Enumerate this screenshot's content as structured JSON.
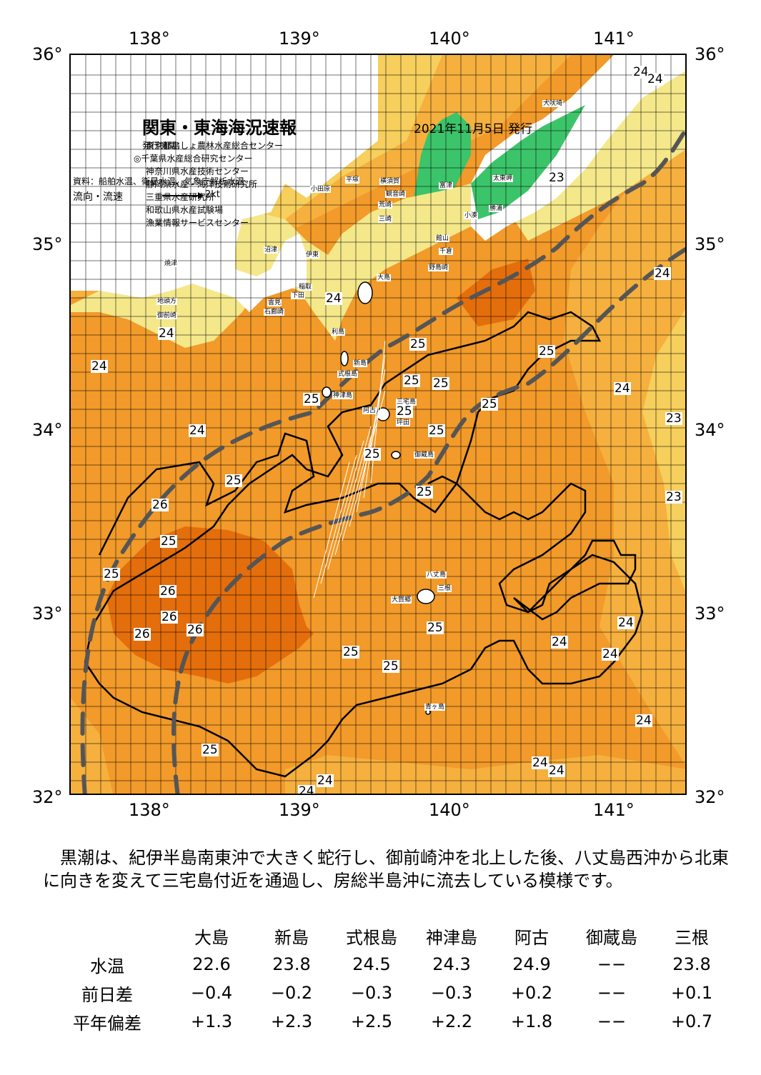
{
  "map": {
    "title": "関東・東海海況速報",
    "issue_date": "2021年11月5日 発行",
    "agency_heading": "発行機関：",
    "agencies": [
      "東京都島しょ農林水産総合センター",
      "◎千葉県水産総合研究センター",
      "神奈川県水産技術センター",
      "静岡県水産・海洋技術研究所",
      "三重県水産研究所",
      "和歌山県水産試験場",
      "漁業情報サービスセンター"
    ],
    "sources": "資料：船舶水温、衛星水温、気象庁解析水温",
    "flow_label": "流向・流速",
    "flow_scale": "2kt",
    "lon_labels": [
      "138°",
      "139°",
      "140°",
      "141°"
    ],
    "lat_labels": [
      "36°",
      "35°",
      "34°",
      "33°",
      "32°"
    ],
    "isotherm_labels": [
      "24",
      "24",
      "23",
      "24",
      "24",
      "24",
      "24",
      "25",
      "25",
      "25",
      "25",
      "25",
      "24",
      "25",
      "23",
      "25",
      "25",
      "24",
      "23",
      "25",
      "25",
      "25",
      "26",
      "23",
      "25",
      "26",
      "26",
      "26",
      "26",
      "25",
      "25",
      "24",
      "24",
      "25",
      "24",
      "25",
      "24",
      "24",
      "25",
      "24",
      "24",
      "24"
    ],
    "place_names": [
      "犬吠埼",
      "太東岬",
      "勝浦",
      "小湊",
      "富津",
      "横須賀",
      "観音崎",
      "平塚",
      "小田原",
      "荒崎",
      "三崎",
      "館山",
      "千倉",
      "野島崎",
      "沼津",
      "伊東",
      "稲取",
      "下田",
      "石廊崎",
      "雲見",
      "焼津",
      "地頭方",
      "御前崎",
      "大島",
      "利島",
      "新島",
      "式根島",
      "神津島",
      "三宅島",
      "阿古",
      "坪田",
      "御蔵島",
      "八丈島",
      "三根",
      "大賀郷",
      "青ヶ島"
    ],
    "colors": {
      "warm_26": "#e46e0c",
      "warm_25": "#f29a2a",
      "mid_24": "#f6b03e",
      "cool_23": "#f6cf5c",
      "cold_22": "#f4e88a",
      "land_green": "#3cc46a",
      "kuroshio_axis": "#555555",
      "grid": "#000000"
    }
  },
  "summary": {
    "text": "黒潮は、紀伊半島南東沖で大きく蛇行し、御前崎沖を北上した後、八丈島西沖から北東に向きを変えて三宅島付近を通過し、房総半島沖に流去している模様です。"
  },
  "table": {
    "columns": [
      "大島",
      "新島",
      "式根島",
      "神津島",
      "阿古",
      "御蔵島",
      "三根"
    ],
    "rows": [
      {
        "label": "水温",
        "values": [
          "22.6",
          "23.8",
          "24.5",
          "24.3",
          "24.9",
          "−−",
          "23.8"
        ]
      },
      {
        "label": "前日差",
        "values": [
          "−0.4",
          "−0.2",
          "−0.3",
          "−0.3",
          "+0.2",
          "−−",
          "+0.1"
        ]
      },
      {
        "label": "平年偏差",
        "values": [
          "+1.3",
          "+2.3",
          "+2.5",
          "+2.2",
          "+1.8",
          "−−",
          "+0.7"
        ]
      }
    ]
  }
}
